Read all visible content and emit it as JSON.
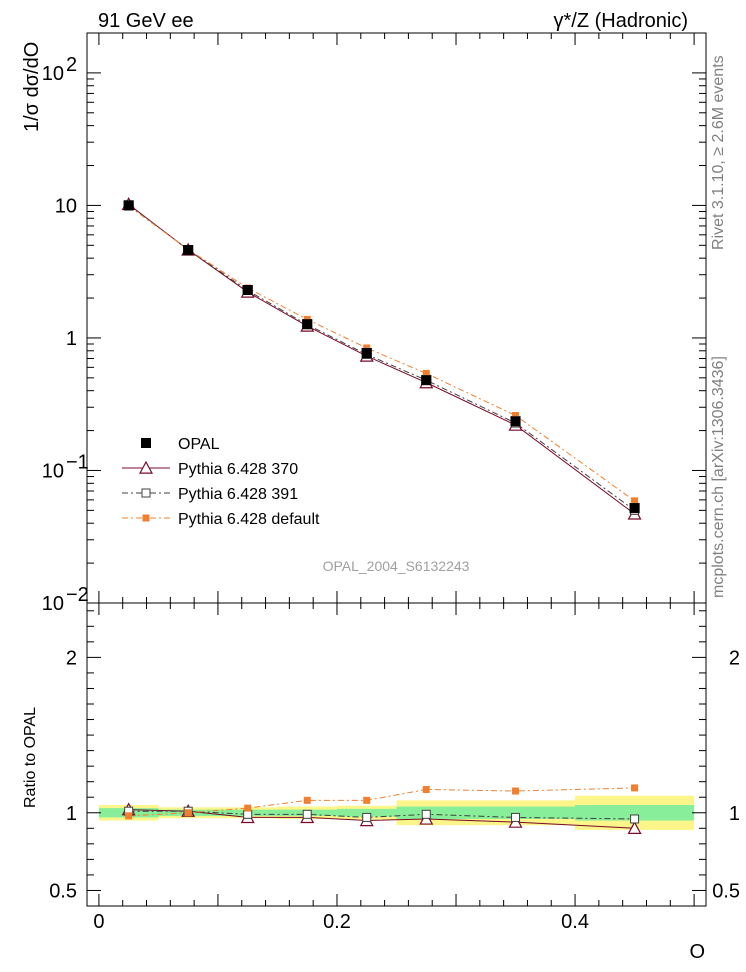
{
  "header": {
    "left_title": "91 GeV ee",
    "right_title": "γ*/Z (Hadronic)"
  },
  "side_labels": {
    "rivet": "Rivet 3.1.10, ≥ 2.6M events",
    "mcplots": "mcplots.cern.ch [arXiv:1306.3436]"
  },
  "analysis_label": "OPAL_2004_S6132243",
  "chart_data": {
    "type": "line",
    "title": "",
    "xlabel": "O",
    "ylabel": "1/σ dσ/dO",
    "ratio_ylabel": "Ratio to OPAL",
    "x_range": [
      -0.01,
      0.51
    ],
    "y_range_log": [
      0.01,
      200
    ],
    "ratio_range": [
      0.4,
      2.35
    ],
    "x_ticks": [
      {
        "v": 0,
        "label": "0"
      },
      {
        "v": 0.2,
        "label": "0.2"
      },
      {
        "v": 0.4,
        "label": "0.4"
      }
    ],
    "y_ticks": [
      {
        "v": 0.01,
        "base": "10",
        "exp": "−2"
      },
      {
        "v": 0.1,
        "base": "10",
        "exp": "−1"
      },
      {
        "v": 1,
        "base": "1",
        "exp": ""
      },
      {
        "v": 10,
        "base": "10",
        "exp": ""
      },
      {
        "v": 100,
        "base": "10",
        "exp": "2"
      }
    ],
    "ratio_ticks": [
      {
        "v": 0.5,
        "label": "0.5"
      },
      {
        "v": 1,
        "label": "1"
      },
      {
        "v": 2,
        "label": "2"
      }
    ],
    "bins": [
      [
        0,
        0.05
      ],
      [
        0.05,
        0.1
      ],
      [
        0.1,
        0.15
      ],
      [
        0.15,
        0.2
      ],
      [
        0.2,
        0.25
      ],
      [
        0.25,
        0.3
      ],
      [
        0.3,
        0.4
      ],
      [
        0.4,
        0.5
      ]
    ],
    "x": [
      0.025,
      0.075,
      0.125,
      0.175,
      0.225,
      0.275,
      0.35,
      0.45
    ],
    "data": {
      "name": "OPAL",
      "values": [
        10.0,
        4.6,
        2.3,
        1.27,
        0.77,
        0.48,
        0.235,
        0.052
      ],
      "band_green": [
        0.03,
        0.02,
        0.02,
        0.02,
        0.025,
        0.04,
        0.04,
        0.05
      ],
      "band_yellow": [
        0.05,
        0.035,
        0.035,
        0.04,
        0.045,
        0.08,
        0.08,
        0.11
      ]
    },
    "series": [
      {
        "name": "Pythia 6.428 370",
        "color": "#7a0a2a",
        "marker": "triangle-open",
        "dash": "",
        "values": [
          10.2,
          4.62,
          2.22,
          1.23,
          0.73,
          0.46,
          0.22,
          0.047
        ],
        "ratio": [
          1.02,
          1.01,
          0.97,
          0.97,
          0.95,
          0.96,
          0.94,
          0.9
        ]
      },
      {
        "name": "Pythia 6.428 391",
        "color": "#404040",
        "marker": "square-open",
        "dash": "6,3,2,3",
        "values": [
          10.1,
          4.64,
          2.28,
          1.26,
          0.75,
          0.48,
          0.228,
          0.05
        ],
        "ratio": [
          1.01,
          1.01,
          0.99,
          0.99,
          0.97,
          0.99,
          0.97,
          0.96
        ]
      },
      {
        "name": "Pythia 6.428 default",
        "color": "#f08030",
        "marker": "square-filled",
        "dash": "6,3,2,3",
        "values": [
          9.9,
          4.65,
          2.38,
          1.38,
          0.84,
          0.54,
          0.26,
          0.059
        ],
        "ratio": [
          0.98,
          1.0,
          1.03,
          1.08,
          1.08,
          1.15,
          1.14,
          1.16
        ]
      }
    ]
  }
}
